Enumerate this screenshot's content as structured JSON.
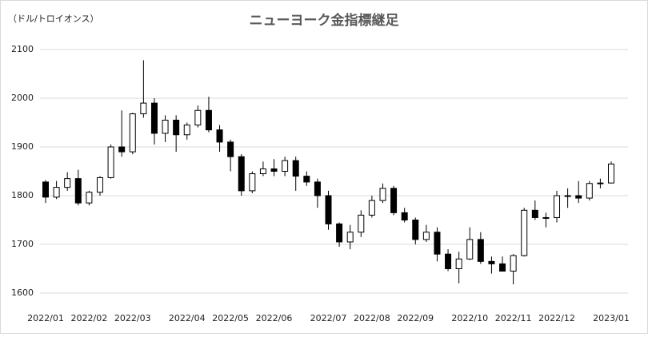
{
  "chart_data": {
    "type": "candlestick",
    "title": "ニューヨーク金指標継足",
    "y_label": "（ドル/トロイオンス）",
    "categories": [
      "2022/01",
      null,
      null,
      null,
      "2022/02",
      null,
      null,
      null,
      "2022/03",
      null,
      null,
      null,
      null,
      "2022/04",
      null,
      null,
      null,
      "2022/05",
      null,
      null,
      null,
      "2022/06",
      null,
      null,
      null,
      null,
      "2022/07",
      null,
      null,
      null,
      "2022/08",
      null,
      null,
      null,
      "2022/09",
      null,
      null,
      null,
      null,
      "2022/10",
      null,
      null,
      null,
      "2022/11",
      null,
      null,
      null,
      "2022/12",
      null,
      null,
      null,
      null,
      "2023/01"
    ],
    "open": [
      1828,
      1797,
      1817,
      1835,
      1785,
      1807,
      1837,
      1900,
      1890,
      1968,
      1990,
      1928,
      1955,
      1925,
      1945,
      1975,
      1935,
      1910,
      1880,
      1810,
      1845,
      1855,
      1850,
      1872,
      1840,
      1828,
      1800,
      1742,
      1705,
      1725,
      1760,
      1790,
      1815,
      1765,
      1750,
      1710,
      1725,
      1680,
      1650,
      1670,
      1710,
      1665,
      1660,
      1645,
      1677,
      1770,
      1755,
      1755,
      1800,
      1800,
      1795,
      1825,
      1826
    ],
    "high": [
      1832,
      1830,
      1848,
      1853,
      1810,
      1840,
      1905,
      1975,
      1970,
      2078,
      2000,
      1965,
      1965,
      1950,
      1985,
      2003,
      1945,
      1915,
      1885,
      1850,
      1870,
      1875,
      1880,
      1880,
      1850,
      1835,
      1810,
      1745,
      1740,
      1770,
      1800,
      1825,
      1820,
      1775,
      1755,
      1740,
      1735,
      1690,
      1685,
      1735,
      1725,
      1675,
      1675,
      1680,
      1775,
      1790,
      1765,
      1810,
      1815,
      1830,
      1830,
      1835,
      1870
    ],
    "low": [
      1785,
      1793,
      1810,
      1780,
      1780,
      1800,
      1835,
      1880,
      1885,
      1960,
      1905,
      1910,
      1890,
      1915,
      1940,
      1930,
      1890,
      1850,
      1800,
      1805,
      1840,
      1840,
      1840,
      1810,
      1820,
      1775,
      1730,
      1695,
      1690,
      1715,
      1755,
      1785,
      1760,
      1745,
      1700,
      1705,
      1665,
      1645,
      1620,
      1668,
      1660,
      1640,
      1645,
      1618,
      1675,
      1750,
      1735,
      1745,
      1775,
      1785,
      1790,
      1815,
      1825
    ],
    "close": [
      1797,
      1817,
      1835,
      1785,
      1807,
      1837,
      1900,
      1890,
      1968,
      1990,
      1928,
      1955,
      1925,
      1945,
      1975,
      1935,
      1910,
      1880,
      1810,
      1845,
      1855,
      1850,
      1872,
      1840,
      1828,
      1800,
      1742,
      1705,
      1725,
      1760,
      1790,
      1815,
      1765,
      1750,
      1710,
      1725,
      1680,
      1650,
      1670,
      1710,
      1665,
      1660,
      1645,
      1677,
      1770,
      1755,
      1755,
      1800,
      1800,
      1795,
      1825,
      1826,
      1865
    ],
    "up_color": "#ffffff",
    "down_color": "#000000",
    "line_color": "#000000",
    "ylim": [
      1600,
      2100
    ],
    "yticks": [
      1600,
      1700,
      1800,
      1900,
      2000,
      2100
    ],
    "grid": true
  }
}
